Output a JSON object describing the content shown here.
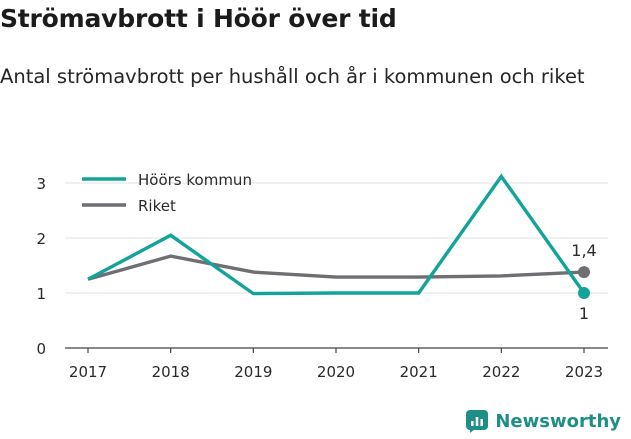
{
  "chart_data": {
    "type": "line",
    "title": "Strömavbrott i Höör över tid",
    "subtitle": "Antal strömavbrott per hushåll och år i kommunen och riket",
    "x": [
      "2017",
      "2018",
      "2019",
      "2020",
      "2021",
      "2022",
      "2023"
    ],
    "series": [
      {
        "name": "Höörs kommun",
        "color": "#14a39a",
        "values": [
          1.25,
          2.05,
          0.99,
          1.0,
          1.0,
          3.12,
          1.0
        ],
        "end_label": "1"
      },
      {
        "name": "Riket",
        "color": "#6e6e73",
        "values": [
          1.25,
          1.67,
          1.38,
          1.29,
          1.29,
          1.31,
          1.38
        ],
        "end_label": "1,4"
      }
    ],
    "yticks": [
      "0",
      "1",
      "2",
      "3"
    ],
    "ylim": [
      0,
      3.3
    ],
    "grid": true,
    "legend_position": "top-left"
  },
  "brand": {
    "name": "Newsworthy",
    "color": "#1d8f86"
  }
}
